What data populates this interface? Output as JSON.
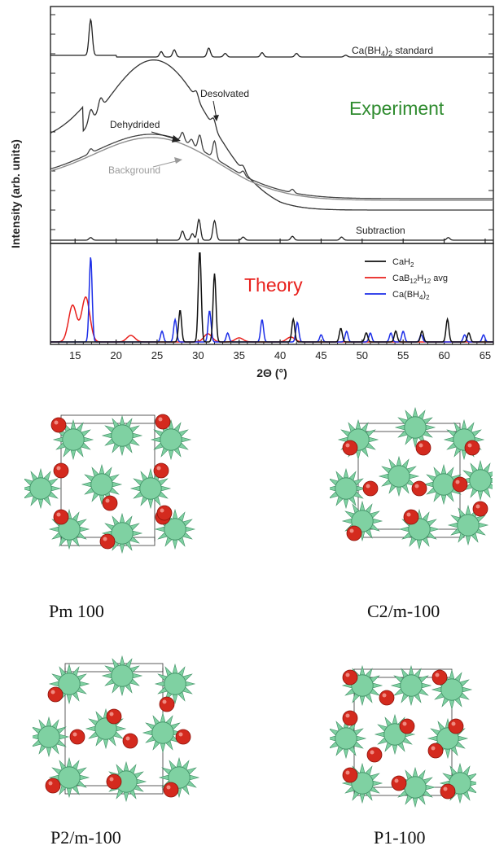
{
  "figure": {
    "experiment_label": "Experiment",
    "theory_label": "Theory",
    "annotations": {
      "standard": "Ca(BH4)2 standard",
      "desolvated": "Desolvated",
      "dehydrided": "Dehydrided",
      "background": "Background",
      "subtraction": "Subtraction"
    },
    "colors": {
      "experiment_label": "#2e8b2e",
      "theory_label": "#e8201c",
      "cah2": "#111111",
      "cab12h12": "#e8201c",
      "cabh4": "#1c2ee8"
    }
  },
  "chart_data": [
    {
      "type": "line",
      "panel": "Experiment",
      "xlabel": "2Θ (°)",
      "ylabel": "Intensity (arb. units)",
      "xlim": [
        12,
        66
      ],
      "x_ticks": [
        15,
        20,
        25,
        30,
        35,
        40,
        45,
        50,
        55,
        60,
        65
      ],
      "series": [
        {
          "name": "Ca(BH4)2 standard",
          "peaks": [
            [
              16.9,
              1.0
            ],
            [
              25.5,
              0.15
            ],
            [
              27.1,
              0.2
            ],
            [
              31.3,
              0.25
            ],
            [
              33.3,
              0.1
            ],
            [
              37.8,
              0.12
            ],
            [
              42.0,
              0.1
            ],
            [
              48.0,
              0.05
            ]
          ]
        },
        {
          "name": "Desolvated",
          "broad_hump_center": 25,
          "peaks": [
            [
              16.9,
              0.5
            ],
            [
              18.1,
              0.45
            ],
            [
              29.8,
              0.3
            ],
            [
              31.9,
              0.35
            ],
            [
              35.5,
              0.2
            ]
          ]
        },
        {
          "name": "Dehydrided",
          "peaks": [
            [
              16.9,
              0.15
            ],
            [
              28.1,
              0.3
            ],
            [
              29.2,
              0.2
            ],
            [
              30.2,
              0.5
            ],
            [
              32.0,
              0.6
            ],
            [
              35.5,
              0.15
            ],
            [
              41.5,
              0.12
            ]
          ]
        },
        {
          "name": "Background",
          "broad_hump_center": 25
        },
        {
          "name": "Subtraction",
          "peaks": [
            [
              16.9,
              0.1
            ],
            [
              28.1,
              0.35
            ],
            [
              29.3,
              0.25
            ],
            [
              30.1,
              0.8
            ],
            [
              32.0,
              0.75
            ],
            [
              35.5,
              0.12
            ],
            [
              41.5,
              0.15
            ],
            [
              47.5,
              0.12
            ],
            [
              60.5,
              0.1
            ]
          ]
        }
      ]
    },
    {
      "type": "line",
      "panel": "Theory",
      "xlabel": "2Θ (°)",
      "xlim": [
        12,
        66
      ],
      "x_ticks": [
        15,
        20,
        25,
        30,
        35,
        40,
        45,
        50,
        55,
        60,
        65
      ],
      "legend": "top-right",
      "series": [
        {
          "name": "CaH2",
          "peaks": [
            [
              27.8,
              0.35
            ],
            [
              30.2,
              1.0
            ],
            [
              32.0,
              0.75
            ],
            [
              41.6,
              0.25
            ],
            [
              47.4,
              0.15
            ],
            [
              50.5,
              0.1
            ],
            [
              54.1,
              0.12
            ],
            [
              57.3,
              0.12
            ],
            [
              60.4,
              0.25
            ],
            [
              63.0,
              0.1
            ]
          ]
        },
        {
          "name": "CaB12H12 avg",
          "peaks": [
            [
              14.7,
              0.45
            ],
            [
              16.3,
              0.55
            ],
            [
              21.8,
              0.08
            ],
            [
              31.2,
              0.1
            ],
            [
              35.0,
              0.05
            ],
            [
              41.3,
              0.06
            ]
          ]
        },
        {
          "name": "Ca(BH4)2",
          "peaks": [
            [
              16.9,
              0.95
            ],
            [
              25.6,
              0.12
            ],
            [
              27.2,
              0.25
            ],
            [
              31.4,
              0.35
            ],
            [
              33.6,
              0.1
            ],
            [
              37.8,
              0.25
            ],
            [
              42.1,
              0.22
            ],
            [
              45.0,
              0.08
            ],
            [
              48.1,
              0.12
            ],
            [
              51.0,
              0.1
            ],
            [
              53.5,
              0.1
            ],
            [
              55.0,
              0.12
            ],
            [
              57.2,
              0.08
            ],
            [
              62.5,
              0.08
            ],
            [
              64.8,
              0.08
            ]
          ]
        }
      ]
    }
  ],
  "structures": [
    {
      "caption": "Pm 100"
    },
    {
      "caption": "C2/m-100"
    },
    {
      "caption": "P2/m-100"
    },
    {
      "caption": "P1-100"
    }
  ],
  "structure_colors": {
    "cluster": "#7fd1a2",
    "cluster_edge": "#3f8f64",
    "calcium": "#d42a1e",
    "cell": "#333333"
  }
}
